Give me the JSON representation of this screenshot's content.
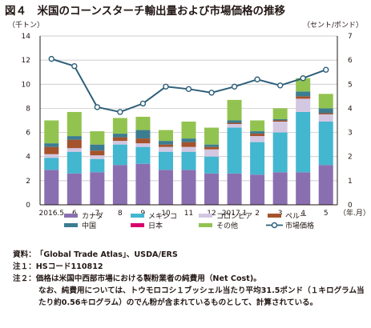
{
  "title": "図４　米国のコーンスターチ輸出量および市場価格の推移",
  "notes": {
    "source_label": "資料：",
    "source_text": "「Global Trade Atlas」、USDA/ERS",
    "note1_label": "注１：",
    "note1_text": "HSコード110812",
    "note2_label": "注２：",
    "note2_text": "価格は米国中西部市場における製粉業者の純費用（Net Cost)。",
    "note2_cont": "なお、純費用については、トウモロコシ１ブッシェル当たり平均31.5ポンド（１キログラム当たり約0.56キログラム）のでん粉が含まれているものとして、計算されている。"
  },
  "colors": {
    "カナダ": "#8a6fb0",
    "メキシコ": "#43b6d0",
    "コロンビア": "#d3c7e1",
    "ペルー": "#a4532c",
    "中国": "#3c7c91",
    "日本": "#d9006c",
    "その他": "#92c350",
    "line": "#2d5f7a",
    "axis": "#231815",
    "grid": "#bdbdbd"
  },
  "chart_data": {
    "type": "bar",
    "stacked": true,
    "left_axis_unit": "（千トン）",
    "right_axis_unit": "（セント/ポンド）",
    "x_axis_unit": "（年.月）",
    "categories": [
      "2016.5",
      "6",
      "7",
      "8",
      "9",
      "10",
      "11",
      "12",
      "2017.1",
      "2",
      "3",
      "4",
      "5"
    ],
    "ylim": [
      0,
      14
    ],
    "yticks": [
      "0",
      "2",
      "4",
      "6",
      "8",
      "10",
      "12",
      "14"
    ],
    "y2lim": [
      0,
      7
    ],
    "y2ticks": [
      "0",
      "1",
      "2",
      "3",
      "4",
      "5",
      "6",
      "7"
    ],
    "grid": true,
    "legend_position": "bottom",
    "series": [
      {
        "name": "カナダ",
        "values": [
          2.9,
          2.6,
          2.7,
          3.3,
          3.4,
          2.9,
          2.9,
          2.6,
          2.6,
          2.5,
          2.7,
          2.7,
          3.3
        ]
      },
      {
        "name": "メキシコ",
        "values": [
          1.0,
          1.8,
          1.1,
          1.7,
          1.4,
          1.5,
          1.5,
          1.4,
          3.8,
          2.7,
          3.3,
          5.0,
          3.6
        ]
      },
      {
        "name": "コロンビア",
        "values": [
          0.3,
          0.3,
          0.3,
          0.3,
          0.3,
          0.4,
          0.4,
          0.6,
          0.3,
          0.5,
          0.9,
          1.1,
          0.6
        ]
      },
      {
        "name": "ペルー",
        "values": [
          0.6,
          0.7,
          0.4,
          0.3,
          0.4,
          0.2,
          0.4,
          0.2,
          0.1,
          0.2,
          0.1,
          0.2,
          0.1
        ]
      },
      {
        "name": "中国",
        "values": [
          0.3,
          0.3,
          0.5,
          0.3,
          0.7,
          0.3,
          0.3,
          0.2,
          0.2,
          0.2,
          0.1,
          0.4,
          0.4
        ]
      },
      {
        "name": "日本",
        "values": [
          0.0,
          0.0,
          0.0,
          0.0,
          0.0,
          0.0,
          0.0,
          0.0,
          0.0,
          0.0,
          0.0,
          0.0,
          0.0
        ]
      },
      {
        "name": "その他",
        "values": [
          1.9,
          2.0,
          1.1,
          1.3,
          1.1,
          0.9,
          1.4,
          1.4,
          1.7,
          0.9,
          0.9,
          1.1,
          1.2
        ]
      }
    ],
    "line_series": {
      "name": "市場価格",
      "axis": "right",
      "values": [
        6.05,
        5.75,
        4.05,
        3.85,
        4.2,
        4.9,
        4.8,
        4.65,
        4.9,
        5.2,
        4.95,
        5.25,
        5.6
      ]
    }
  }
}
